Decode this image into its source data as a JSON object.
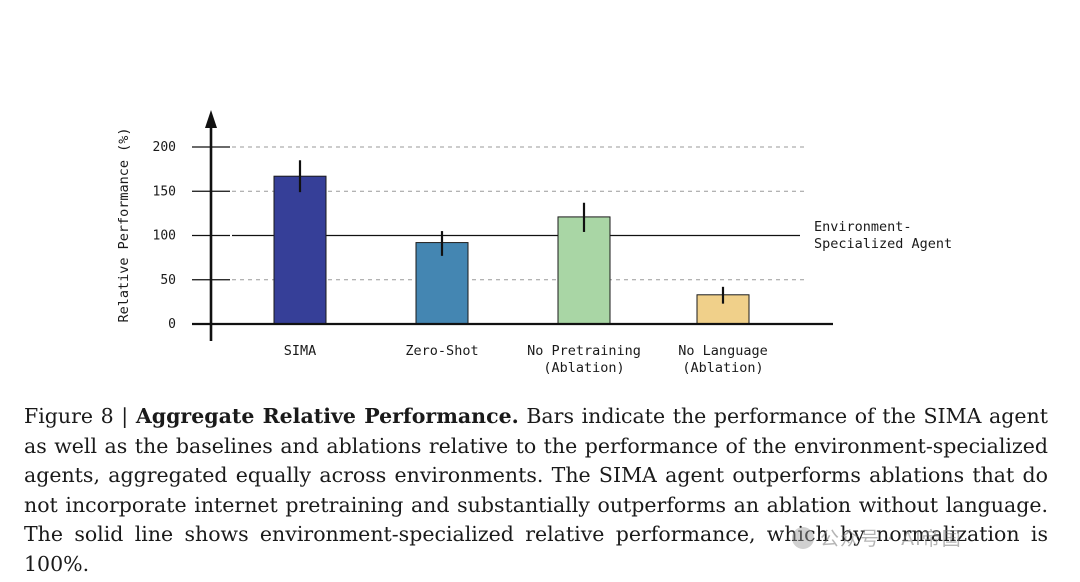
{
  "chart_data": {
    "type": "bar",
    "ylabel": "Relative Performance (%)",
    "xlabel": "",
    "ylim": [
      0,
      200
    ],
    "yticks": [
      0,
      50,
      100,
      150,
      200
    ],
    "grid": "dashed horizontal",
    "categories": [
      {
        "line1": "SIMA",
        "line2": ""
      },
      {
        "line1": "Zero-Shot",
        "line2": ""
      },
      {
        "line1": "No Pretraining",
        "line2": "(Ablation)"
      },
      {
        "line1": "No Language",
        "line2": "(Ablation)"
      }
    ],
    "values": [
      167,
      92,
      121,
      33
    ],
    "error_low": [
      149,
      77,
      104,
      23
    ],
    "error_high": [
      185,
      105,
      137,
      42
    ],
    "colors": [
      "#363f98",
      "#4486b2",
      "#a9d6a5",
      "#f0d08a"
    ],
    "reference": {
      "value": 100,
      "label_line1": "Environment-",
      "label_line2": "Specialized Agent"
    }
  },
  "caption": {
    "prefix": "Figure 8 | ",
    "title": "Aggregate Relative Performance.",
    "body": " Bars indicate the performance of the SIMA agent as well as the baselines and ablations relative to the performance of the environment-specialized agents, aggregated equally across environments. The SIMA agent outperforms ablations that do not incorporate internet pretraining and substantially outperforms an ablation without language. The solid line shows environment-specialized relative performance, which by normalization is 100%."
  },
  "watermark": {
    "text": "公众号 · AI帝国"
  }
}
